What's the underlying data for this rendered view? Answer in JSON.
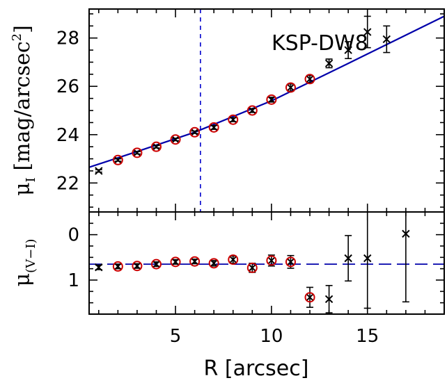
{
  "chart_data": [
    {
      "type": "scatter",
      "panel": "top",
      "annotation": "KSP-DW8",
      "xlabel": "R [arcsec]",
      "ylabel_main": "μ",
      "ylabel_sub": "I",
      "ylabel_rest": "[mag/arcsec",
      "ylabel_sup": "2",
      "ylabel_close": "]",
      "xlim": [
        0.5,
        19
      ],
      "ylim": [
        29.2,
        20.8
      ],
      "yticks": [
        22,
        24,
        26,
        28
      ],
      "xticks": [
        5,
        10,
        15
      ],
      "vline_x": 6.3,
      "model_line": {
        "x": [
          0.5,
          19
        ],
        "y_points": [
          [
            0.5,
            22.65
          ],
          [
            3,
            23.3
          ],
          [
            6,
            24.1
          ],
          [
            10,
            25.4
          ],
          [
            14,
            26.95
          ],
          [
            19,
            28.9
          ]
        ]
      },
      "points": [
        {
          "x": 1,
          "y": 22.5,
          "err": 0.05,
          "fit": false
        },
        {
          "x": 2,
          "y": 22.95,
          "err": 0.05,
          "fit": true
        },
        {
          "x": 3,
          "y": 23.25,
          "err": 0.05,
          "fit": true
        },
        {
          "x": 4,
          "y": 23.5,
          "err": 0.05,
          "fit": true
        },
        {
          "x": 5,
          "y": 23.8,
          "err": 0.05,
          "fit": true
        },
        {
          "x": 6,
          "y": 24.1,
          "err": 0.05,
          "fit": true
        },
        {
          "x": 7,
          "y": 24.3,
          "err": 0.08,
          "fit": true
        },
        {
          "x": 8,
          "y": 24.62,
          "err": 0.08,
          "fit": true
        },
        {
          "x": 9,
          "y": 25.0,
          "err": 0.08,
          "fit": true
        },
        {
          "x": 10,
          "y": 25.45,
          "err": 0.1,
          "fit": true
        },
        {
          "x": 11,
          "y": 25.95,
          "err": 0.15,
          "fit": true
        },
        {
          "x": 12,
          "y": 26.3,
          "err": 0.15,
          "fit": true
        },
        {
          "x": 13,
          "y": 26.95,
          "err": 0.18,
          "fit": false
        },
        {
          "x": 14,
          "y": 27.5,
          "err": 0.35,
          "fit": false
        },
        {
          "x": 15,
          "y": 28.25,
          "err": 0.65,
          "fit": false
        },
        {
          "x": 16,
          "y": 27.95,
          "err": 0.55,
          "fit": false
        }
      ]
    },
    {
      "type": "scatter",
      "panel": "bottom",
      "xlabel": "R [arcsec]",
      "ylabel_main": "μ",
      "ylabel_sub": "(V−I)",
      "xlim": [
        0.5,
        19
      ],
      "ylim": [
        -0.5,
        1.75
      ],
      "yticks": [
        0,
        1
      ],
      "xticks": [
        5,
        10,
        15
      ],
      "mean_line_y": 0.65,
      "points": [
        {
          "x": 1,
          "y": 0.72,
          "err": 0.05,
          "fit": false
        },
        {
          "x": 2,
          "y": 0.7,
          "err": 0.05,
          "fit": true
        },
        {
          "x": 3,
          "y": 0.69,
          "err": 0.05,
          "fit": true
        },
        {
          "x": 4,
          "y": 0.65,
          "err": 0.05,
          "fit": true
        },
        {
          "x": 5,
          "y": 0.6,
          "err": 0.05,
          "fit": true
        },
        {
          "x": 6,
          "y": 0.59,
          "err": 0.05,
          "fit": true
        },
        {
          "x": 7,
          "y": 0.63,
          "err": 0.06,
          "fit": true
        },
        {
          "x": 8,
          "y": 0.55,
          "err": 0.08,
          "fit": true
        },
        {
          "x": 9,
          "y": 0.73,
          "err": 0.1,
          "fit": true
        },
        {
          "x": 10,
          "y": 0.57,
          "err": 0.12,
          "fit": true
        },
        {
          "x": 11,
          "y": 0.6,
          "err": 0.14,
          "fit": true
        },
        {
          "x": 12,
          "y": 1.38,
          "err": 0.22,
          "fit": true
        },
        {
          "x": 13,
          "y": 1.42,
          "err": 0.3,
          "fit": false
        },
        {
          "x": 14,
          "y": 0.52,
          "err": 0.5,
          "fit": false
        },
        {
          "x": 15,
          "y": 0.52,
          "err": 1.1,
          "fit": false
        },
        {
          "x": 17,
          "y": -0.02,
          "err": 1.5,
          "fit": false
        }
      ]
    }
  ]
}
